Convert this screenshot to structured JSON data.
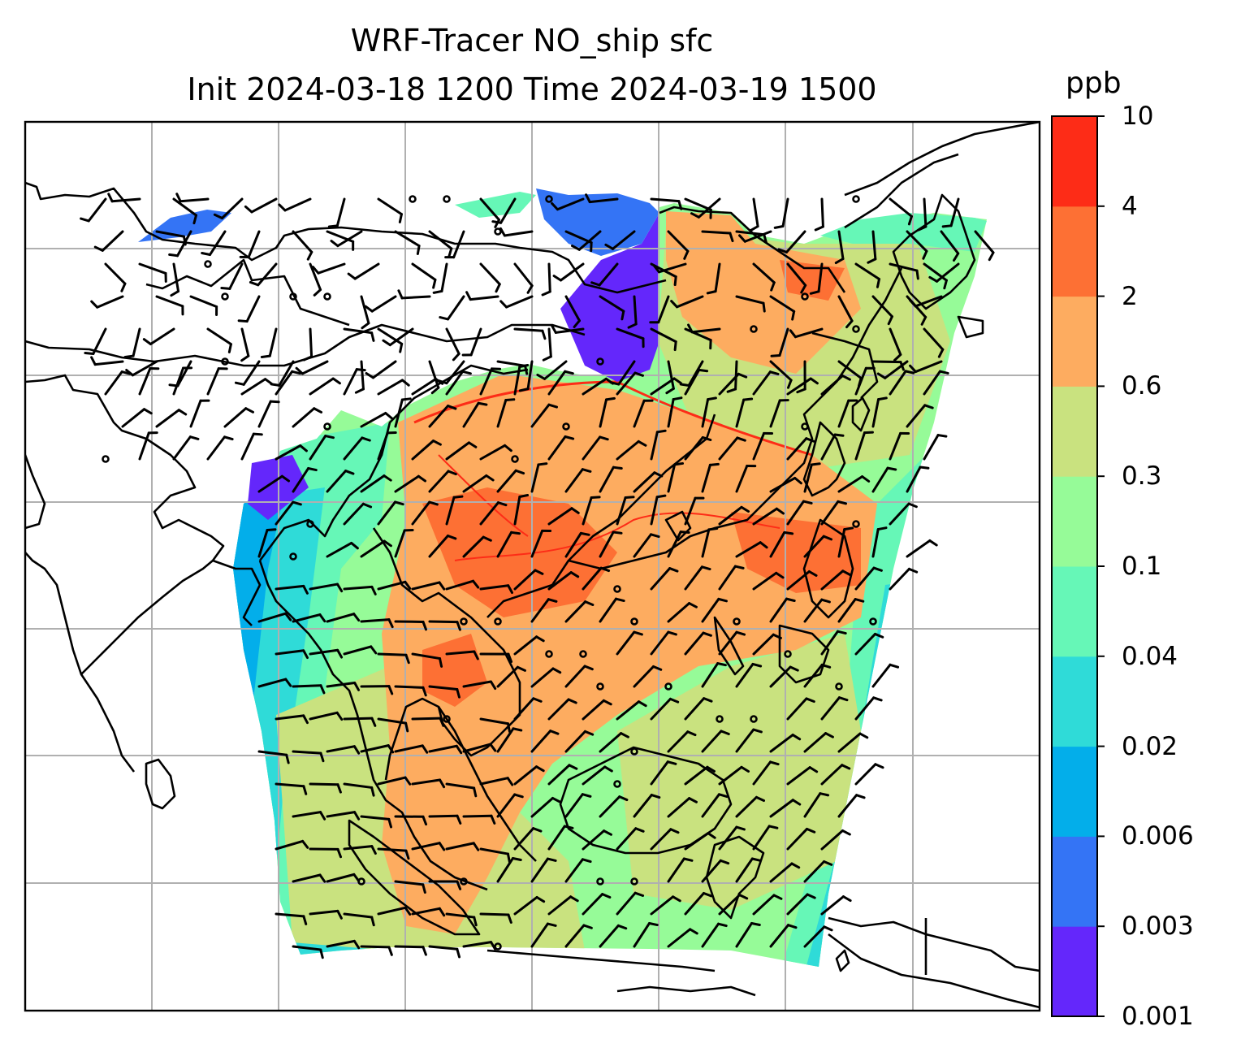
{
  "title_line1": "WRF-Tracer NO_ship sfc",
  "title_line2": "Init 2024-03-18 1200 Time 2024-03-19 1500",
  "colorbar": {
    "unit": "ppb",
    "levels": [
      "0.001",
      "0.003",
      "0.006",
      "0.02",
      "0.04",
      "0.1",
      "0.3",
      "0.6",
      "2",
      "4",
      "10"
    ],
    "colors": [
      "#6427fb",
      "#3474f5",
      "#03aeea",
      "#2fdbd8",
      "#66f7b7",
      "#96fb98",
      "#c9e27f",
      "#fdac60",
      "#fd7034",
      "#fd2c17"
    ]
  },
  "map_colors": {
    "land_outline": "#000000",
    "gridline": "#b0b0b0",
    "wind_barb": "#000000"
  },
  "chart_data": {
    "type": "heatmap",
    "variable": "NO_ship sfc",
    "units": "ppb",
    "contour_levels": [
      0.001,
      0.003,
      0.006,
      0.02,
      0.04,
      0.1,
      0.3,
      0.6,
      2,
      4,
      10
    ],
    "grid": true,
    "overlays": [
      "coastlines",
      "country borders",
      "wind barbs"
    ],
    "colorbar_position": "right"
  }
}
